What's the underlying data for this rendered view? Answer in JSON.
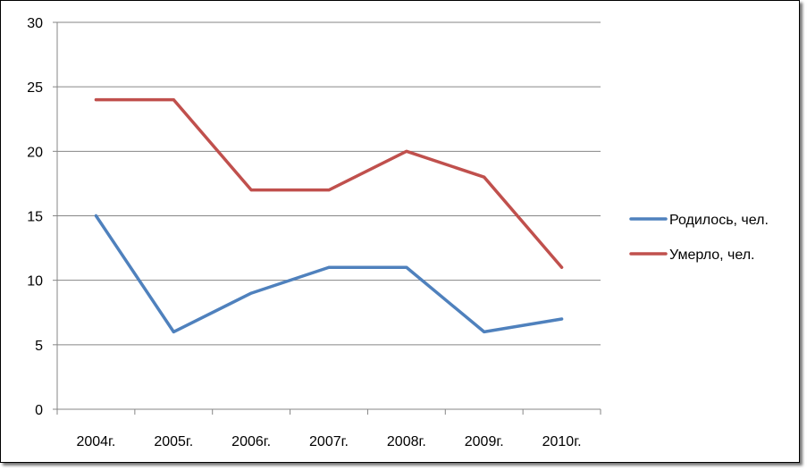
{
  "chart_data": {
    "type": "line",
    "categories": [
      "2004г.",
      "2005г.",
      "2006г.",
      "2007г.",
      "2008г.",
      "2009г.",
      "2010г."
    ],
    "series": [
      {
        "name": "Родилось, чел.",
        "values": [
          15,
          6,
          9,
          11,
          11,
          6,
          7
        ],
        "color": "#4F81BD"
      },
      {
        "name": "Умерло, чел.",
        "values": [
          24,
          24,
          17,
          17,
          20,
          18,
          11
        ],
        "color": "#C0504D"
      }
    ],
    "ylim": [
      0,
      30
    ],
    "yticks": [
      0,
      5,
      10,
      15,
      20,
      25,
      30
    ],
    "grid": true,
    "legend": "right"
  }
}
